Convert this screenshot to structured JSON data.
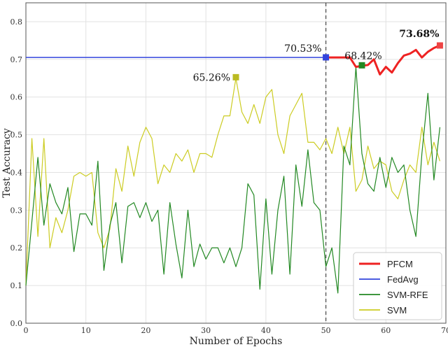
{
  "chart_data": {
    "type": "line",
    "xlabel": "Number of Epochs",
    "ylabel": "Test Accuracy",
    "xlim": [
      0,
      70
    ],
    "ylim": [
      0,
      0.85
    ],
    "xticks": [
      0,
      10,
      20,
      30,
      40,
      50,
      60,
      70
    ],
    "yticks": [
      0.0,
      0.1,
      0.2,
      0.3,
      0.4,
      0.5,
      0.6,
      0.7,
      0.8
    ],
    "grid": true,
    "legend_position": "bottom-right",
    "vline_x": 50,
    "series": [
      {
        "name": "PFCM",
        "color": "#ee2222",
        "width": 3,
        "x": [
          50,
          51,
          52,
          53,
          54,
          55,
          56,
          57,
          58,
          59,
          60,
          61,
          62,
          63,
          64,
          65,
          66,
          67,
          68,
          69
        ],
        "y": [
          0.705,
          0.705,
          0.705,
          0.705,
          0.705,
          0.68,
          0.683,
          0.685,
          0.7,
          0.66,
          0.68,
          0.665,
          0.69,
          0.71,
          0.715,
          0.725,
          0.705,
          0.72,
          0.73,
          0.737
        ]
      },
      {
        "name": "FedAvg",
        "color": "#3344dd",
        "width": 1.5,
        "x": [
          0,
          50
        ],
        "y": [
          0.705,
          0.705
        ]
      },
      {
        "name": "SVM-RFE",
        "color": "#228822",
        "width": 1.2,
        "x": [
          0,
          1,
          2,
          3,
          4,
          5,
          6,
          7,
          8,
          9,
          10,
          11,
          12,
          13,
          14,
          15,
          16,
          17,
          18,
          19,
          20,
          21,
          22,
          23,
          24,
          25,
          26,
          27,
          28,
          29,
          30,
          31,
          32,
          33,
          34,
          35,
          36,
          37,
          38,
          39,
          40,
          41,
          42,
          43,
          44,
          45,
          46,
          47,
          48,
          49,
          50,
          51,
          52,
          53,
          54,
          55,
          56,
          57,
          58,
          59,
          60,
          61,
          62,
          63,
          64,
          65,
          66,
          67,
          68,
          69
        ],
        "y": [
          0.1,
          0.27,
          0.44,
          0.26,
          0.37,
          0.32,
          0.29,
          0.36,
          0.19,
          0.29,
          0.29,
          0.26,
          0.43,
          0.14,
          0.26,
          0.32,
          0.16,
          0.31,
          0.32,
          0.28,
          0.32,
          0.27,
          0.3,
          0.13,
          0.32,
          0.21,
          0.12,
          0.3,
          0.15,
          0.21,
          0.17,
          0.2,
          0.2,
          0.16,
          0.2,
          0.15,
          0.2,
          0.37,
          0.34,
          0.09,
          0.33,
          0.13,
          0.3,
          0.39,
          0.13,
          0.42,
          0.31,
          0.46,
          0.32,
          0.3,
          0.15,
          0.2,
          0.08,
          0.47,
          0.42,
          0.68,
          0.45,
          0.37,
          0.35,
          0.44,
          0.36,
          0.44,
          0.4,
          0.42,
          0.3,
          0.23,
          0.45,
          0.61,
          0.38,
          0.52
        ]
      },
      {
        "name": "SVM",
        "color": "#cccc22",
        "width": 1.2,
        "x": [
          0,
          1,
          2,
          3,
          4,
          5,
          6,
          7,
          8,
          9,
          10,
          11,
          12,
          13,
          14,
          15,
          16,
          17,
          18,
          19,
          20,
          21,
          22,
          23,
          24,
          25,
          26,
          27,
          28,
          29,
          30,
          31,
          32,
          33,
          34,
          35,
          36,
          37,
          38,
          39,
          40,
          41,
          42,
          43,
          44,
          45,
          46,
          47,
          48,
          49,
          50,
          51,
          52,
          53,
          54,
          55,
          56,
          57,
          58,
          59,
          60,
          61,
          62,
          63,
          64,
          65,
          66,
          67,
          68,
          69
        ],
        "y": [
          0.1,
          0.49,
          0.23,
          0.49,
          0.2,
          0.28,
          0.24,
          0.3,
          0.39,
          0.4,
          0.39,
          0.4,
          0.24,
          0.2,
          0.25,
          0.41,
          0.35,
          0.47,
          0.39,
          0.48,
          0.52,
          0.49,
          0.37,
          0.42,
          0.4,
          0.45,
          0.43,
          0.46,
          0.4,
          0.45,
          0.45,
          0.44,
          0.5,
          0.55,
          0.55,
          0.65,
          0.56,
          0.53,
          0.58,
          0.53,
          0.6,
          0.62,
          0.5,
          0.45,
          0.55,
          0.58,
          0.61,
          0.48,
          0.48,
          0.46,
          0.49,
          0.45,
          0.52,
          0.45,
          0.52,
          0.35,
          0.38,
          0.47,
          0.41,
          0.43,
          0.42,
          0.35,
          0.33,
          0.38,
          0.42,
          0.4,
          0.52,
          0.42,
          0.48,
          0.43
        ]
      }
    ],
    "highlight_points": [
      {
        "x": 35,
        "y": 0.6526,
        "label": "65.26%",
        "color": "#bbbb22",
        "bold": false
      },
      {
        "x": 50,
        "y": 0.7053,
        "label": "70.53%",
        "color": "#3344dd",
        "bold": false
      },
      {
        "x": 56,
        "y": 0.6842,
        "label": "68.42%",
        "color": "#228822",
        "bold": false
      },
      {
        "x": 69,
        "y": 0.7368,
        "label": "73.68%",
        "color": "#ee4444",
        "bold": true
      }
    ]
  }
}
